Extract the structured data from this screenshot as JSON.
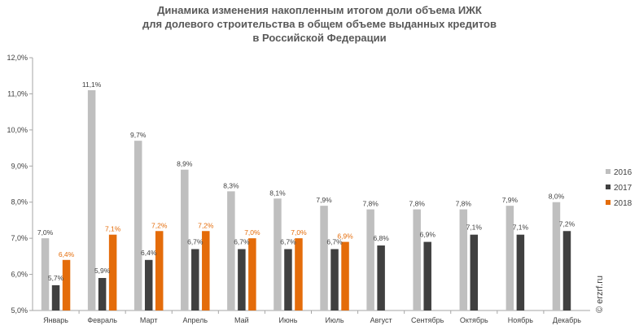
{
  "title_lines": [
    "Динамика изменения накопленным итогом доли объема ИЖК",
    "для долевого строительства  в общем объеме выданных кредитов",
    "в Российской  Федерации"
  ],
  "watermark": "© erzrf.ru",
  "colors": {
    "2016": "#bfbfbf",
    "2017": "#404040",
    "2018": "#e46c0a"
  },
  "chart_data": {
    "type": "bar",
    "title": "Динамика изменения накопленным итогом доли объема ИЖК для долевого строительства  в общем объеме выданных кредитов в Российской  Федерации",
    "categories": [
      "Январь",
      "Февраль",
      "Март",
      "Апрель",
      "Май",
      "Июнь",
      "Июль",
      "Август",
      "Сентябрь",
      "Октябрь",
      "Ноябрь",
      "Декабрь"
    ],
    "series": [
      {
        "name": "2016",
        "values": [
          7.0,
          11.1,
          9.7,
          8.9,
          8.3,
          8.1,
          7.9,
          7.8,
          7.8,
          7.8,
          7.9,
          8.0
        ],
        "labels": [
          "7,0%",
          "11,1%",
          "9,7%",
          "8,9%",
          "8,3%",
          "8,1%",
          "7,9%",
          "7,8%",
          "7,8%",
          "7,8%",
          "7,9%",
          "8,0%"
        ]
      },
      {
        "name": "2017",
        "values": [
          5.7,
          5.9,
          6.4,
          6.7,
          6.7,
          6.7,
          6.7,
          6.8,
          6.9,
          7.1,
          7.1,
          7.2
        ],
        "labels": [
          "5,7%",
          "5,9%",
          "6,4%",
          "6,7%",
          "6,7%",
          "6,7%",
          "6,7%",
          "6,8%",
          "6,9%",
          "7,1%",
          "7,1%",
          "7,2%"
        ]
      },
      {
        "name": "2018",
        "values": [
          6.4,
          7.1,
          7.2,
          7.2,
          7.0,
          7.0,
          6.9,
          null,
          null,
          null,
          null,
          null
        ],
        "labels": [
          "6,4%",
          "7,1%",
          "7,2%",
          "7,2%",
          "7,0%",
          "7,0%",
          "6,9%",
          null,
          null,
          null,
          null,
          null
        ]
      }
    ],
    "ylim": [
      5.0,
      12.0
    ],
    "yticks": [
      "5,0%",
      "6,0%",
      "7,0%",
      "8,0%",
      "9,0%",
      "10,0%",
      "11,0%",
      "12,0%"
    ],
    "grid": false,
    "legend": "right"
  }
}
